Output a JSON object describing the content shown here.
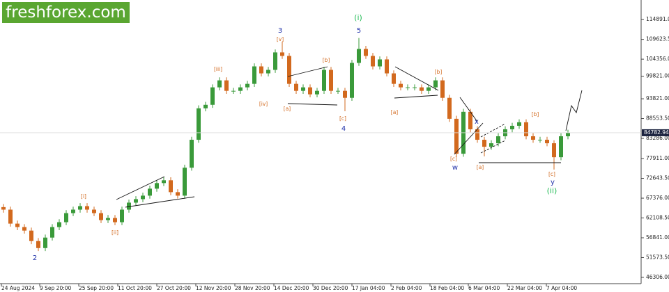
{
  "logo": "freshforex.com",
  "chart_data": {
    "type": "candlestick",
    "up_color": "#3a9a3a",
    "down_color": "#d2691e",
    "open": [
      65000,
      64326,
      60608,
      59679,
      58749,
      55961,
      54102,
      56890,
      59679,
      60980,
      63397,
      64326,
      65256,
      64326,
      63397,
      61538,
      62095,
      60980,
      64326,
      66185,
      67115,
      68044,
      69903,
      71390,
      72134,
      68974,
      68044,
      75480,
      82916,
      91282,
      92211,
      96859,
      98718,
      95929,
      95929,
      96859,
      97788,
      102436,
      100577,
      101506,
      106154,
      105224,
      97788,
      95929,
      96859,
      95000,
      95929,
      101506,
      95929,
      95929,
      94070,
      103365,
      107083,
      105224,
      102436,
      104295,
      100577,
      97788,
      96859,
      96859,
      96859,
      95929,
      96859,
      98718,
      94070,
      88493,
      79198,
      90352,
      85705,
      82916,
      81057,
      81987,
      83846,
      85705,
      86634,
      87564,
      83846,
      82916,
      82916,
      81987,
      78269,
      83846
    ],
    "high": [
      65800,
      65126,
      61408,
      60479,
      59549,
      56761,
      57690,
      60479,
      61780,
      64197,
      65126,
      66056,
      66056,
      65126,
      64197,
      62895,
      62895,
      65126,
      66985,
      67915,
      68844,
      70703,
      72190,
      72934,
      72934,
      69774,
      76280,
      83716,
      92082,
      93011,
      97659,
      99518,
      99518,
      96729,
      97659,
      98588,
      103236,
      103236,
      102306,
      106954,
      109000,
      106024,
      98588,
      97659,
      97659,
      96729,
      102306,
      102306,
      96729,
      96729,
      104165,
      110000,
      107883,
      106024,
      105095,
      105095,
      101377,
      98588,
      97659,
      97659,
      97659,
      97659,
      99518,
      99518,
      94870,
      89293,
      91152,
      91152,
      86505,
      83716,
      82787,
      84646,
      86505,
      87434,
      88364,
      88364,
      84646,
      83716,
      83716,
      82787,
      84646,
      85583
    ],
    "low": [
      63526,
      59808,
      58879,
      57949,
      55161,
      53302,
      53302,
      56090,
      58879,
      60180,
      62597,
      63526,
      63526,
      62597,
      60738,
      60738,
      60180,
      60180,
      63526,
      65385,
      66315,
      67244,
      69103,
      70590,
      68174,
      67244,
      67244,
      74680,
      82116,
      90482,
      91411,
      96059,
      95129,
      95129,
      95129,
      96059,
      96988,
      99777,
      99777,
      100706,
      104424,
      96988,
      95129,
      95129,
      94200,
      94200,
      95129,
      95129,
      95129,
      90500,
      93270,
      102565,
      104424,
      101636,
      101636,
      99777,
      96988,
      96059,
      96059,
      96059,
      95129,
      95129,
      96059,
      93270,
      87693,
      78398,
      78398,
      84905,
      82116,
      78500,
      80257,
      81187,
      83046,
      84905,
      85834,
      83046,
      82116,
      82116,
      81187,
      75000,
      77469,
      83046
    ],
    "close": [
      64326,
      60608,
      59679,
      58749,
      55961,
      54102,
      56890,
      59679,
      60980,
      63397,
      64326,
      65256,
      64326,
      63397,
      61538,
      62095,
      60980,
      64326,
      66185,
      67115,
      68044,
      69903,
      71390,
      72134,
      68974,
      68044,
      75480,
      82916,
      91282,
      92211,
      96859,
      98718,
      95929,
      95929,
      96859,
      97788,
      102436,
      100577,
      101506,
      106154,
      105224,
      97788,
      95929,
      96859,
      95000,
      95929,
      101506,
      95929,
      95929,
      94070,
      103365,
      107083,
      105224,
      102436,
      104295,
      100577,
      97788,
      96859,
      96859,
      96859,
      95929,
      96859,
      98718,
      94070,
      88493,
      79198,
      90352,
      85705,
      82916,
      81057,
      81987,
      83846,
      85705,
      86634,
      87564,
      83846,
      82916,
      82916,
      81987,
      78269,
      83846,
      84783
    ],
    "xlim": [
      -0.5,
      91.5
    ],
    "xticks": [
      {
        "value": -0.3,
        "label": "24 Aug 2024"
      },
      {
        "value": 5.2,
        "label": "9 Sep 20:00"
      },
      {
        "value": 10.8,
        "label": "25 Sep 20:00"
      },
      {
        "value": 16.4,
        "label": "11 Oct 20:00"
      },
      {
        "value": 22,
        "label": "27 Oct 20:00"
      },
      {
        "value": 27.6,
        "label": "12 Nov 20:00"
      },
      {
        "value": 33.2,
        "label": "28 Nov 20:00"
      },
      {
        "value": 38.8,
        "label": "14 Dec 20:00"
      },
      {
        "value": 44.4,
        "label": "30 Dec 20:00"
      },
      {
        "value": 50,
        "label": "17 Jan 04:00"
      },
      {
        "value": 55.6,
        "label": "2 Feb 04:00"
      },
      {
        "value": 61.2,
        "label": "18 Feb 04:00"
      },
      {
        "value": 66.7,
        "label": "6 Mar 04:00"
      },
      {
        "value": 72.3,
        "label": "22 Mar 04:00"
      },
      {
        "value": 77.9,
        "label": "7 Apr 04:00"
      }
    ],
    "ylim": [
      44260,
      120100
    ],
    "yticks": [
      {
        "value": 114891,
        "label": "114891.00"
      },
      {
        "value": 109623.5,
        "label": "109623.50"
      },
      {
        "value": 104356,
        "label": "104356.00"
      },
      {
        "value": 99821,
        "label": "99821.00"
      },
      {
        "value": 93821,
        "label": "93821.00"
      },
      {
        "value": 88553.5,
        "label": "88553.50"
      },
      {
        "value": 83286,
        "label": "83286.00"
      },
      {
        "value": 77911,
        "label": "77911.00"
      },
      {
        "value": 72643.5,
        "label": "72643.50"
      },
      {
        "value": 67376,
        "label": "67376.00"
      },
      {
        "value": 62108.5,
        "label": "62108.50"
      },
      {
        "value": 56841,
        "label": "56841.00"
      },
      {
        "value": 51573.5,
        "label": "51573.50"
      },
      {
        "value": 46306,
        "label": "46306.00"
      }
    ],
    "current_price": {
      "value": 84782.94,
      "label": "84782.94"
    },
    "annotations": [
      "2",
      "[i]",
      "[ii]",
      "[iii]",
      "[iv]",
      "3",
      "[v]",
      "[a]",
      "[b]",
      "[c]",
      "4",
      "(i)",
      "5",
      "[a]",
      "[b]",
      "[c]",
      "w",
      "x",
      "[a]",
      "[b]",
      "[c]",
      "y",
      "(ii)"
    ]
  }
}
